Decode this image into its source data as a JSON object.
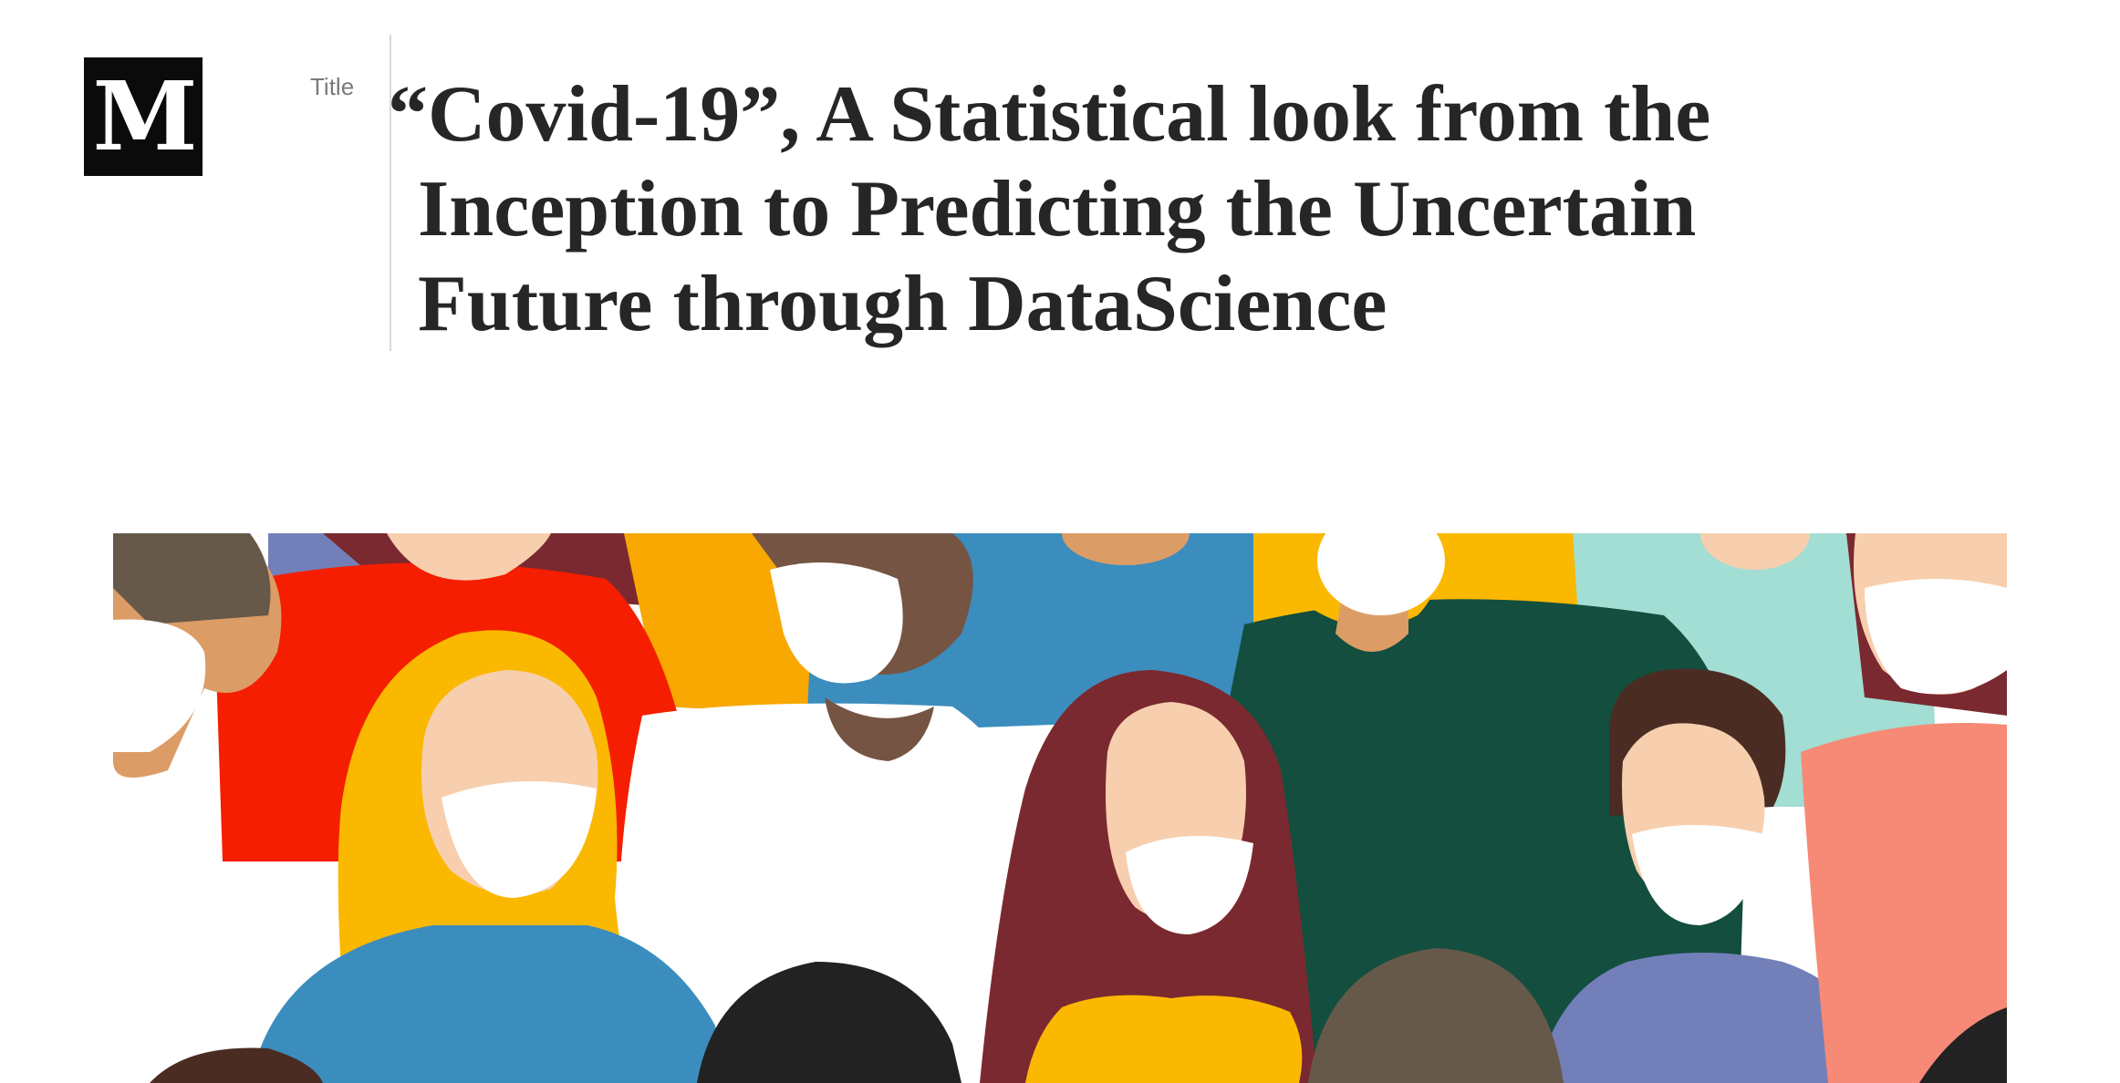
{
  "brand": {
    "logo_letter": "M",
    "logo_icon": "medium-logo-icon"
  },
  "title_field": {
    "label": "Title",
    "lines": [
      "“Covid-19”, A Statistical look from the",
      "Inception to Predicting the Uncertain",
      "Future through DataScience"
    ]
  },
  "hero_image": {
    "icon": "crowd-with-masks-illustration",
    "colors": {
      "red": "#f51e00",
      "orange": "#f8a800",
      "yellow": "#fbb800",
      "blue": "#3b8dbd",
      "green": "#134e3e",
      "maroon": "#7b2930",
      "skin": "#f7cfae",
      "tan": "#dc9c66",
      "brown": "#4a2c22",
      "teal": "#a2ded3",
      "salmon": "#f68a76",
      "purple": "#737fb9"
    }
  }
}
